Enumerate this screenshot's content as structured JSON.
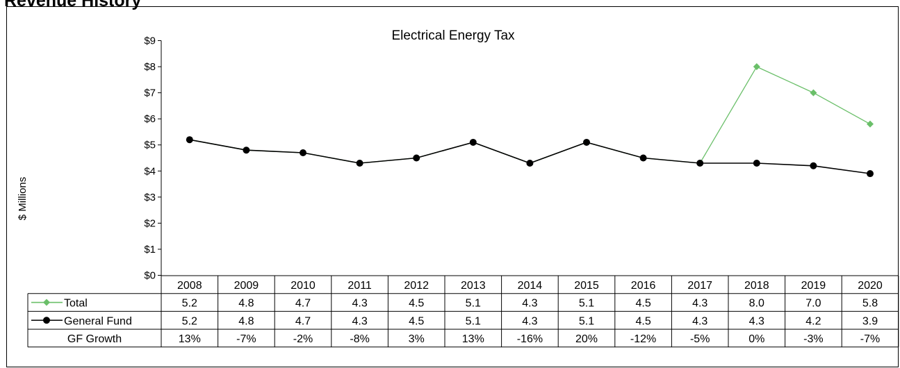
{
  "page": {
    "heading": "Revenue History"
  },
  "chart_data": {
    "type": "line",
    "title": "Electrical Energy Tax",
    "ylabel": "$ Millions",
    "xlabel": "",
    "ylim": [
      0,
      9
    ],
    "yticks": [
      0,
      1,
      2,
      3,
      4,
      5,
      6,
      7,
      8,
      9
    ],
    "ytick_labels": [
      "$0",
      "$1",
      "$2",
      "$3",
      "$4",
      "$5",
      "$6",
      "$7",
      "$8",
      "$9"
    ],
    "grid": false,
    "legend": "data-table",
    "categories": [
      "2008",
      "2009",
      "2010",
      "2011",
      "2012",
      "2013",
      "2014",
      "2015",
      "2016",
      "2017",
      "2018",
      "2019",
      "2020"
    ],
    "series": [
      {
        "name": "Total",
        "color": "#6abf69",
        "marker": "diamond",
        "values": [
          5.2,
          4.8,
          4.7,
          4.3,
          4.5,
          5.1,
          4.3,
          5.1,
          4.5,
          4.3,
          8.0,
          7.0,
          5.8
        ],
        "labels": [
          "5.2",
          "4.8",
          "4.7",
          "4.3",
          "4.5",
          "5.1",
          "4.3",
          "5.1",
          "4.5",
          "4.3",
          "8.0",
          "7.0",
          "5.8"
        ]
      },
      {
        "name": "General Fund",
        "color": "#000000",
        "marker": "circle",
        "values": [
          5.2,
          4.8,
          4.7,
          4.3,
          4.5,
          5.1,
          4.3,
          5.1,
          4.5,
          4.3,
          4.3,
          4.2,
          3.9
        ],
        "labels": [
          "5.2",
          "4.8",
          "4.7",
          "4.3",
          "4.5",
          "5.1",
          "4.3",
          "5.1",
          "4.5",
          "4.3",
          "4.3",
          "4.2",
          "3.9"
        ]
      }
    ],
    "table_rows": [
      {
        "name": "GF Growth",
        "values": [
          "13%",
          "-7%",
          "-2%",
          "-8%",
          "3%",
          "13%",
          "-16%",
          "20%",
          "-12%",
          "-5%",
          "0%",
          "-3%",
          "-7%"
        ]
      }
    ]
  }
}
